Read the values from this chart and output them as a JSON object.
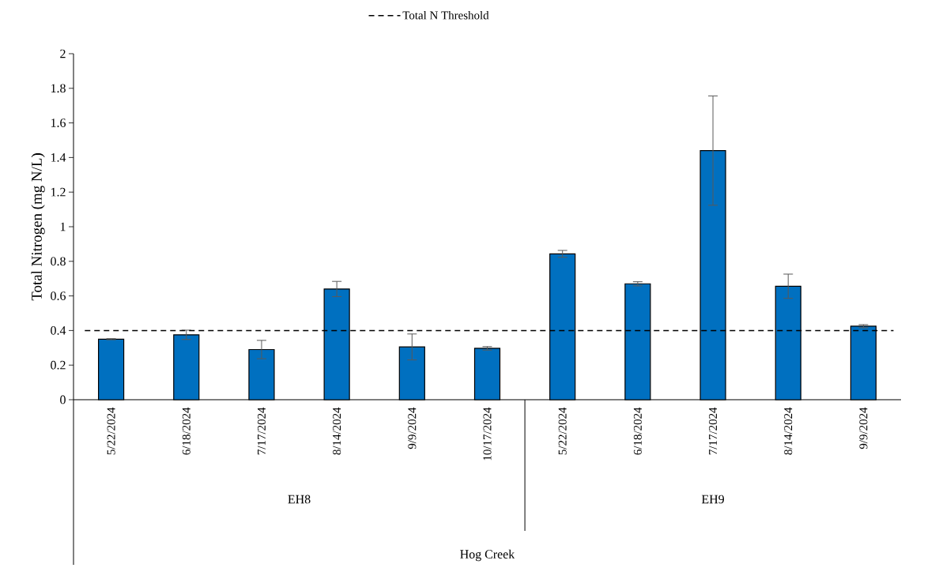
{
  "chart_data": {
    "type": "bar",
    "ylabel": "Total Nitrogen (mg N/L)",
    "categories": [
      "5/22/2024",
      "6/18/2024",
      "7/17/2024",
      "8/14/2024",
      "9/9/2024",
      "10/17/2024",
      "5/22/2024",
      "6/18/2024",
      "7/17/2024",
      "8/14/2024",
      "9/9/2024"
    ],
    "values": [
      0.35,
      0.375,
      0.29,
      0.64,
      0.305,
      0.297,
      0.843,
      0.67,
      1.44,
      0.656,
      0.425
    ],
    "errors": [
      0.003,
      0.027,
      0.053,
      0.044,
      0.075,
      0.01,
      0.02,
      0.012,
      0.316,
      0.07,
      0.009
    ],
    "color": "#0070c0",
    "ylim": [
      0,
      2
    ],
    "yticks": [
      0,
      0.2,
      0.4,
      0.6,
      0.8,
      1,
      1.2,
      1.4,
      1.6,
      1.8,
      2
    ],
    "ref_lines": [
      {
        "axis": "y",
        "value": 0.4,
        "label": "Total N Threshold",
        "color": "#000000",
        "line_style": "dashed"
      }
    ],
    "legend": "top",
    "annotations": [
      "EH8",
      "EH9",
      "Hog Creek"
    ]
  }
}
